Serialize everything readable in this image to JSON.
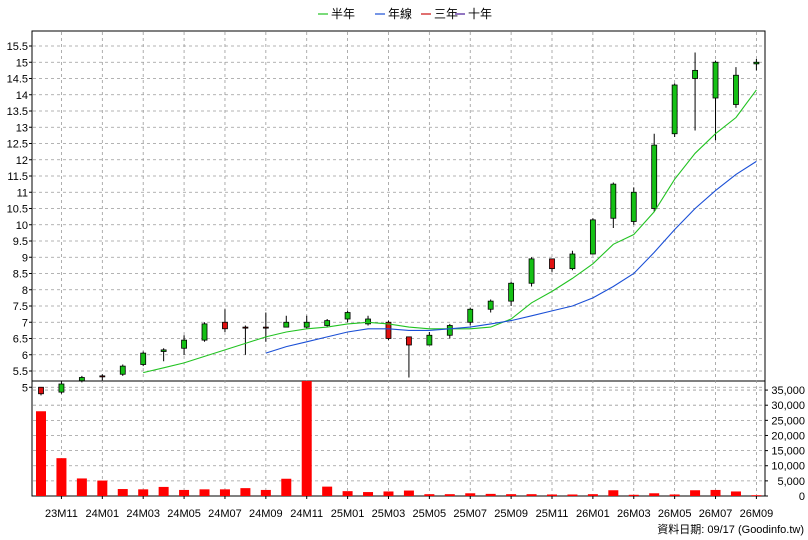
{
  "chart_data": {
    "type": "candlestick",
    "legend": [
      {
        "name": "半年",
        "color": "#22c322"
      },
      {
        "name": "年線",
        "color": "#1a4fd6"
      },
      {
        "name": "三年",
        "color": "#cc1111"
      },
      {
        "name": "十年",
        "color": "#4a1a9a"
      }
    ],
    "legend_placement": "top-center",
    "grid": true,
    "price_axis": {
      "side": "left",
      "ylim": [
        4.5,
        15.5
      ],
      "ticks": [
        "5",
        "5.5",
        "6",
        "6.5",
        "7",
        "7.5",
        "8",
        "8.5",
        "9",
        "9.5",
        "10",
        "10.5",
        "11",
        "11.5",
        "12",
        "12.5",
        "13",
        "13.5",
        "14",
        "14.5",
        "15",
        "15.5"
      ]
    },
    "volume_axis": {
      "side": "right",
      "ylim": [
        0,
        38000
      ],
      "ticks": [
        "0",
        "5,000",
        "10,000",
        "15,000",
        "20,000",
        "25,000",
        "30,000",
        "35,000"
      ]
    },
    "x_labels": [
      "23M11",
      "24M01",
      "24M03",
      "24M05",
      "24M07",
      "24M09",
      "24M11",
      "25M01",
      "25M03",
      "25M05",
      "25M07",
      "25M09",
      "25M11",
      "26M01",
      "26M03",
      "26M05",
      "26M07",
      "26M09"
    ],
    "candles": [
      {
        "o": 4.8,
        "h": 5.0,
        "l": 4.75,
        "c": 5.0
      },
      {
        "o": 5.1,
        "h": 5.2,
        "l": 4.8,
        "c": 4.85
      },
      {
        "o": 5.3,
        "h": 5.35,
        "l": 5.15,
        "c": 5.2
      },
      {
        "o": 5.35,
        "h": 5.4,
        "l": 5.2,
        "c": 5.35
      },
      {
        "o": 5.65,
        "h": 5.7,
        "l": 5.35,
        "c": 5.4
      },
      {
        "o": 6.05,
        "h": 6.1,
        "l": 5.65,
        "c": 5.7
      },
      {
        "o": 6.15,
        "h": 6.2,
        "l": 5.8,
        "c": 6.1
      },
      {
        "o": 6.45,
        "h": 6.6,
        "l": 6.0,
        "c": 6.2
      },
      {
        "o": 6.95,
        "h": 7.0,
        "l": 6.4,
        "c": 6.45
      },
      {
        "o": 6.8,
        "h": 7.4,
        "l": 6.7,
        "c": 7.0
      },
      {
        "o": 6.85,
        "h": 6.9,
        "l": 6.0,
        "c": 6.85
      },
      {
        "o": 6.85,
        "h": 7.3,
        "l": 6.4,
        "c": 6.85
      },
      {
        "o": 7.0,
        "h": 7.2,
        "l": 6.85,
        "c": 6.85
      },
      {
        "o": 7.0,
        "h": 7.2,
        "l": 6.8,
        "c": 6.85
      },
      {
        "o": 7.05,
        "h": 7.1,
        "l": 6.85,
        "c": 6.9
      },
      {
        "o": 7.3,
        "h": 7.35,
        "l": 7.0,
        "c": 7.1
      },
      {
        "o": 7.1,
        "h": 7.2,
        "l": 6.9,
        "c": 6.95
      },
      {
        "o": 6.5,
        "h": 7.05,
        "l": 6.45,
        "c": 7.0
      },
      {
        "o": 6.3,
        "h": 6.55,
        "l": 5.3,
        "c": 6.55
      },
      {
        "o": 6.6,
        "h": 6.7,
        "l": 6.3,
        "c": 6.3
      },
      {
        "o": 6.9,
        "h": 6.95,
        "l": 6.5,
        "c": 6.6
      },
      {
        "o": 7.4,
        "h": 7.45,
        "l": 6.9,
        "c": 7.0
      },
      {
        "o": 7.65,
        "h": 7.7,
        "l": 7.3,
        "c": 7.4
      },
      {
        "o": 8.2,
        "h": 8.25,
        "l": 7.5,
        "c": 7.65
      },
      {
        "o": 8.95,
        "h": 9.0,
        "l": 8.1,
        "c": 8.2
      },
      {
        "o": 8.65,
        "h": 8.95,
        "l": 8.55,
        "c": 8.95
      },
      {
        "o": 9.1,
        "h": 9.2,
        "l": 8.6,
        "c": 8.65
      },
      {
        "o": 10.15,
        "h": 10.2,
        "l": 9.1,
        "c": 9.1
      },
      {
        "o": 11.25,
        "h": 11.3,
        "l": 9.9,
        "c": 10.2
      },
      {
        "o": 11.0,
        "h": 11.15,
        "l": 10.0,
        "c": 10.1
      },
      {
        "o": 12.45,
        "h": 12.8,
        "l": 10.4,
        "c": 10.5
      },
      {
        "o": 14.3,
        "h": 14.35,
        "l": 12.7,
        "c": 12.8
      },
      {
        "o": 14.75,
        "h": 15.3,
        "l": 12.9,
        "c": 14.5
      },
      {
        "o": 15.0,
        "h": 15.05,
        "l": 12.6,
        "c": 13.9
      },
      {
        "o": 14.6,
        "h": 14.85,
        "l": 13.6,
        "c": 13.7
      },
      {
        "o": 15.0,
        "h": 15.1,
        "l": 14.75,
        "c": 14.95
      }
    ],
    "volume": [
      28000,
      12500,
      5800,
      5100,
      2300,
      2200,
      3000,
      2000,
      2200,
      2200,
      2600,
      2000,
      5700,
      38000,
      3100,
      1600,
      1300,
      1500,
      1800,
      600,
      600,
      900,
      700,
      600,
      600,
      500,
      500,
      600,
      1900,
      400,
      900,
      500,
      1900,
      2000,
      1500,
      100
    ],
    "ma_half_year": [
      null,
      null,
      null,
      null,
      null,
      5.45,
      5.6,
      5.75,
      5.95,
      6.15,
      6.35,
      6.55,
      6.7,
      6.8,
      6.85,
      6.95,
      7.0,
      6.95,
      6.85,
      6.8,
      6.8,
      6.8,
      6.85,
      7.1,
      7.6,
      7.95,
      8.35,
      8.8,
      9.4,
      9.7,
      10.4,
      11.4,
      12.2,
      12.8,
      13.3,
      14.15
    ],
    "ma_year": [
      null,
      null,
      null,
      null,
      null,
      null,
      null,
      null,
      null,
      null,
      null,
      6.05,
      6.25,
      6.4,
      6.55,
      6.7,
      6.8,
      6.8,
      6.75,
      6.75,
      6.8,
      6.85,
      6.95,
      7.05,
      7.2,
      7.35,
      7.5,
      7.75,
      8.1,
      8.5,
      9.15,
      9.85,
      10.5,
      11.05,
      11.55,
      11.95
    ]
  },
  "footer": {
    "date_label": "資料日期: 09/17",
    "source_label": "(Goodinfo.tw)"
  }
}
